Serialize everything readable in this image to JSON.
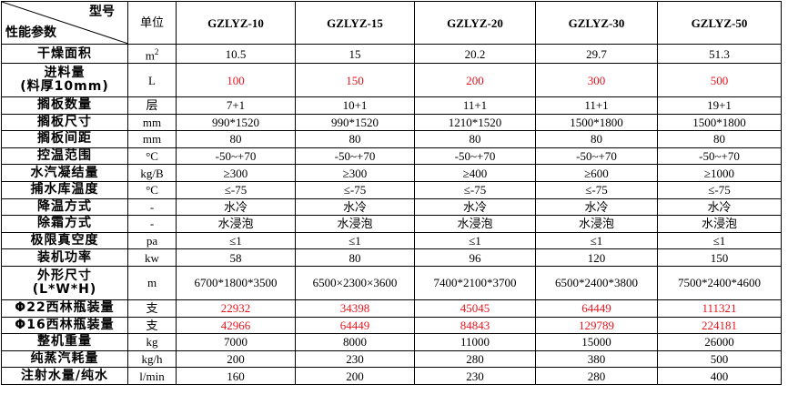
{
  "header": {
    "corner_top": "型号",
    "corner_bottom": "性能参数",
    "unit": "单位",
    "models": [
      "GZLYZ-10",
      "GZLYZ-15",
      "GZLYZ-20",
      "GZLYZ-30",
      "GZLYZ-50"
    ]
  },
  "colors": {
    "highlight": "#e8141e",
    "text": "#000000",
    "border": "#000000"
  },
  "rows": [
    {
      "param": "干燥面积",
      "unit": "m",
      "unit_sup": "2",
      "values": [
        "10.5",
        "15",
        "20.2",
        "29.7",
        "51.3"
      ],
      "red": false,
      "tall": false
    },
    {
      "param": "进料量",
      "param2": "(料厚10mm)",
      "unit": "L",
      "values": [
        "100",
        "150",
        "200",
        "300",
        "500"
      ],
      "red": true,
      "tall": true
    },
    {
      "param": "搁板数量",
      "unit": "层",
      "values": [
        "7+1",
        "10+1",
        "11+1",
        "11+1",
        "19+1"
      ],
      "red": false
    },
    {
      "param": "搁板尺寸",
      "unit": "mm",
      "values": [
        "990*1520",
        "990*1520",
        "1210*1520",
        "1500*1800",
        "1500*1800"
      ],
      "red": false
    },
    {
      "param": "搁板间距",
      "unit": "mm",
      "values": [
        "80",
        "80",
        "80",
        "80",
        "80"
      ],
      "red": false
    },
    {
      "param": "控温范围",
      "unit": "°C",
      "values": [
        "-50~+70",
        "-50~+70",
        "-50~+70",
        "-50~+70",
        "-50~+70"
      ],
      "red": false
    },
    {
      "param": "水汽凝结量",
      "unit": "kg/B",
      "values": [
        "≥300",
        "≥300",
        "≥400",
        "≥600",
        "≥1000"
      ],
      "red": false
    },
    {
      "param": "捕水库温度",
      "unit": "°C",
      "values": [
        "≤-75",
        "≤-75",
        "≤-75",
        "≤-75",
        "≤-75"
      ],
      "red": false
    },
    {
      "param": "降温方式",
      "unit": "-",
      "values": [
        "水冷",
        "水冷",
        "水冷",
        "水冷",
        "水冷"
      ],
      "red": false
    },
    {
      "param": "除霜方式",
      "unit": "-",
      "values": [
        "水浸泡",
        "水浸泡",
        "水浸泡",
        "水浸泡",
        "水浸泡"
      ],
      "red": false
    },
    {
      "param": "极限真空度",
      "unit": "pa",
      "values": [
        "≤1",
        "≤1",
        "≤1",
        "≤1",
        "≤1"
      ],
      "red": false
    },
    {
      "param": "装机功率",
      "unit": "kw",
      "values": [
        "58",
        "80",
        "96",
        "120",
        "150"
      ],
      "red": false
    },
    {
      "param": "外形尺寸",
      "param2": "(L*W*H)",
      "unit": "m",
      "values": [
        "6700*1800*3500",
        "6500×2300×3600",
        "7400*2100*3700",
        "6500*2400*3800",
        "7500*2400*4600"
      ],
      "red": false,
      "tall": true
    },
    {
      "param": "Φ22西林瓶装量",
      "unit": "支",
      "values": [
        "22932",
        "34398",
        "45045",
        "64449",
        "111321"
      ],
      "red": true
    },
    {
      "param": "Φ16西林瓶装量",
      "unit": "支",
      "values": [
        "42966",
        "64449",
        "84843",
        "129789",
        "224181"
      ],
      "red": true
    },
    {
      "param": "整机重量",
      "unit": "kg",
      "values": [
        "7000",
        "8000",
        "11000",
        "15000",
        "26000"
      ],
      "red": false
    },
    {
      "param": "纯蒸汽耗量",
      "unit": "kg/h",
      "values": [
        "200",
        "230",
        "280",
        "380",
        "500"
      ],
      "red": false
    },
    {
      "param": "注射水量/纯水",
      "unit": "l/min",
      "values": [
        "160",
        "200",
        "230",
        "280",
        "400"
      ],
      "red": false
    }
  ]
}
